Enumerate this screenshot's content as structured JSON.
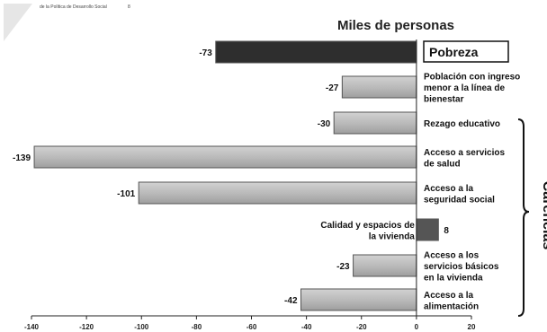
{
  "header_fragment": "de la Política de Desarrollo Social",
  "header_mark": "8",
  "chart_data": {
    "type": "bar",
    "orientation": "horizontal",
    "title": "Miles de personas",
    "side_label": "Carencias",
    "categories": [
      "Pobreza",
      "Población con ingreso menor a la línea de bienestar",
      "Rezago educativo",
      "Acceso a servicios de salud",
      "Acceso a la seguridad social",
      "Calidad y espacios de la vivienda",
      "Acceso a los servicios básicos en la vivienda",
      "Acceso a la alimentación"
    ],
    "category_lines": [
      [
        "Pobreza"
      ],
      [
        "Población con ingreso",
        "menor a la línea de",
        "bienestar"
      ],
      [
        "Rezago educativo"
      ],
      [
        "Acceso a servicios",
        "de salud"
      ],
      [
        "Acceso a  la",
        "seguridad social"
      ],
      [
        "Calidad y espacios de",
        "la vivienda"
      ],
      [
        "Acceso a los",
        "servicios básicos",
        "en la vivienda"
      ],
      [
        "Acceso a la",
        "alimentación"
      ]
    ],
    "values": [
      -73,
      -27,
      -30,
      -139,
      -101,
      8,
      -23,
      -42
    ],
    "value_labels": [
      "-73",
      "-27",
      "-30",
      "-139",
      "-101",
      "8",
      "-23",
      "-42"
    ],
    "xlim": [
      -140,
      20
    ],
    "xticks": [
      -140,
      -120,
      -100,
      -80,
      -60,
      -40,
      -20,
      0,
      20
    ],
    "grid": false,
    "colors": {
      "pobreza": "#2e2e2e",
      "light_bar": "#b8b8b8",
      "dark_bar": "#555555",
      "edge": "#555555"
    }
  }
}
